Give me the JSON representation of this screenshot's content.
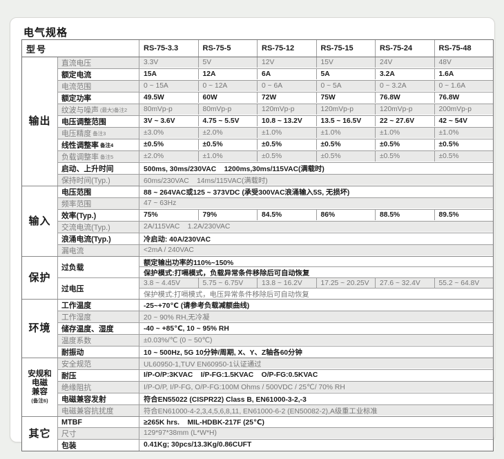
{
  "page": {
    "title": "电气规格"
  },
  "colors": {
    "page_bg": "#eef0ed",
    "card_bg": "#ffffff",
    "shaded_row_bg": "#e9e9e8",
    "border_dark": "#6f6f6f",
    "border_cell": "#9d9d9d",
    "text_dark": "#1a1a1a",
    "text_muted": "#767676"
  },
  "table": {
    "header": {
      "label": "型号",
      "models": [
        "RS-75-3.3",
        "RS-75-5",
        "RS-75-12",
        "RS-75-15",
        "RS-75-24",
        "RS-75-48"
      ]
    },
    "sections": [
      {
        "name": "输出",
        "groups": [
          {
            "label": "直流电压",
            "rows": [
              {
                "cells": [
                  "3.3V",
                  "5V",
                  "12V",
                  "15V",
                  "24V",
                  "48V"
                ],
                "shaded": true
              }
            ]
          },
          {
            "label": "额定电流",
            "rows": [
              {
                "cells": [
                  "15A",
                  "12A",
                  "6A",
                  "5A",
                  "3.2A",
                  "1.6A"
                ]
              }
            ]
          },
          {
            "label": "电流范围",
            "rows": [
              {
                "cells": [
                  "0 ~ 15A",
                  "0 ~ 12A",
                  "0 ~ 6A",
                  "0 ~ 5A",
                  "0 ~ 3.2A",
                  "0 ~ 1.6A"
                ],
                "shaded": true
              }
            ]
          },
          {
            "label": "额定功率",
            "rows": [
              {
                "cells": [
                  "49.5W",
                  "60W",
                  "72W",
                  "75W",
                  "76.8W",
                  "76.8W"
                ]
              }
            ]
          },
          {
            "label": "纹波与噪声",
            "note": "(最大)备注2",
            "rows": [
              {
                "cells": [
                  "80mVp-p",
                  "80mVp-p",
                  "120mVp-p",
                  "120mVp-p",
                  "120mVp-p",
                  "200mVp-p"
                ],
                "shaded": true
              }
            ]
          },
          {
            "label": "电压调整范围",
            "rows": [
              {
                "cells": [
                  "3V ~ 3.6V",
                  "4.75 ~ 5.5V",
                  "10.8 ~ 13.2V",
                  "13.5 ~ 16.5V",
                  "22 ~ 27.6V",
                  "42 ~ 54V"
                ]
              }
            ]
          },
          {
            "label": "电压精度",
            "note": "备注3",
            "rows": [
              {
                "cells": [
                  "±3.0%",
                  "±2.0%",
                  "±1.0%",
                  "±1.0%",
                  "±1.0%",
                  "±1.0%"
                ],
                "shaded": true
              }
            ]
          },
          {
            "label": "线性调整率",
            "note": "备注4",
            "rows": [
              {
                "cells": [
                  "±0.5%",
                  "±0.5%",
                  "±0.5%",
                  "±0.5%",
                  "±0.5%",
                  "±0.5%"
                ]
              }
            ]
          },
          {
            "label": "负载调整率",
            "note": "备注5",
            "rows": [
              {
                "cells": [
                  "±2.0%",
                  "±1.0%",
                  "±0.5%",
                  "±0.5%",
                  "±0.5%",
                  "±0.5%"
                ],
                "shaded": true
              }
            ]
          },
          {
            "label": "启动、上升时间",
            "rows": [
              {
                "value": "500ms, 30ms/230VAC    1200ms,30ms/115VAC(满载时)"
              }
            ]
          },
          {
            "label": "保持时间(Typ.)",
            "rows": [
              {
                "value": "60ms/230VAC    14ms/115VAC(满载时)",
                "shaded": true
              }
            ]
          }
        ]
      },
      {
        "name": "输入",
        "groups": [
          {
            "label": "电压范围",
            "rows": [
              {
                "value": "88 ~ 264VAC或125 ~ 373VDC (承受300VAC浪涌输入5S, 无损坏)"
              }
            ]
          },
          {
            "label": "频率范围",
            "rows": [
              {
                "value": "47 ~ 63Hz",
                "shaded": true
              }
            ]
          },
          {
            "label": "效率(Typ.)",
            "rows": [
              {
                "cells": [
                  "75%",
                  "79%",
                  "84.5%",
                  "86%",
                  "88.5%",
                  "89.5%"
                ]
              }
            ]
          },
          {
            "label": "交流电流(Typ.)",
            "rows": [
              {
                "value": "2A/115VAC    1.2A/230VAC",
                "shaded": true
              }
            ]
          },
          {
            "label": "浪涌电流(Typ.)",
            "rows": [
              {
                "value": "冷启动: 40A/230VAC"
              }
            ]
          },
          {
            "label": "漏电流",
            "rows": [
              {
                "value": "<2mA / 240VAC",
                "shaded": true
              }
            ]
          }
        ]
      },
      {
        "name": "保护",
        "groups": [
          {
            "label": "过负载",
            "rows": [
              {
                "value": "额定输出功率的110%~150%"
              },
              {
                "value": "保护模式:打嗝模式，负载异常条件移除后可自动恢复"
              }
            ]
          },
          {
            "label": "过电压",
            "rows": [
              {
                "cells": [
                  "3.8 ~ 4.45V",
                  "5.75 ~ 6.75V",
                  "13.8 ~ 16.2V",
                  "17.25 ~ 20.25V",
                  "27.6 ~ 32.4V",
                  "55.2 ~ 64.8V"
                ],
                "shaded": true
              },
              {
                "value": "保护模式:打嗝模式，电压异常条件移除后可自动恢复",
                "muted": true
              }
            ]
          }
        ]
      },
      {
        "name": "环境",
        "groups": [
          {
            "label": "工作温度",
            "rows": [
              {
                "value": "-25~+70℃ (请参考负载减额曲线)"
              }
            ]
          },
          {
            "label": "工作湿度",
            "rows": [
              {
                "value": "20 ~ 90% RH,无冷凝",
                "shaded": true
              }
            ]
          },
          {
            "label": "储存温度、湿度",
            "rows": [
              {
                "value": "-40 ~ +85℃, 10 ~ 95% RH"
              }
            ]
          },
          {
            "label": "温度系数",
            "rows": [
              {
                "value": "±0.03%/℃ (0 ~ 50℃)",
                "shaded": true
              }
            ]
          },
          {
            "label": "耐振动",
            "rows": [
              {
                "value": "10 ~ 500Hz, 5G 10分钟/周期, X、Y、Z轴各60分钟"
              }
            ]
          }
        ]
      },
      {
        "name": "安规和电磁兼容",
        "name_lines": [
          "安规和",
          "电磁",
          "兼容"
        ],
        "name_note": "(备注6)",
        "groups": [
          {
            "label": "安全规范",
            "rows": [
              {
                "value": "UL60950-1,TUV EN60950-1认证通过",
                "shaded": true
              }
            ]
          },
          {
            "label": "耐压",
            "rows": [
              {
                "value": "I/P-O/P:3KVAC    I/P-FG:1.5KVAC    O/P-FG:0.5KVAC"
              }
            ]
          },
          {
            "label": "绝缘阻抗",
            "rows": [
              {
                "value": "I/P-O/P, I/P-FG, O/P-FG:100M Ohms / 500VDC / 25℃/ 70% RH",
                "shaded": true
              }
            ]
          },
          {
            "label": "电磁兼容发射",
            "rows": [
              {
                "value": "符合EN55022 (CISPR22) Class B, EN61000-3-2,-3"
              }
            ]
          },
          {
            "label": "电磁兼容抗扰度",
            "rows": [
              {
                "value": "符合EN61000-4-2,3,4,5,6,8,11, EN61000-6-2 (EN50082-2),A级重工业标准",
                "shaded": true
              }
            ]
          }
        ]
      },
      {
        "name": "其它",
        "groups": [
          {
            "label": "MTBF",
            "rows": [
              {
                "value": "≥265K hrs.    MIL-HDBK-217F (25℃)"
              }
            ]
          },
          {
            "label": "尺寸",
            "rows": [
              {
                "value": "129*97*38mm (L*W*H)",
                "shaded": true
              }
            ]
          },
          {
            "label": "包装",
            "rows": [
              {
                "value": "0.41Kg; 30pcs/13.3Kg/0.86CUFT"
              }
            ]
          }
        ]
      }
    ]
  }
}
